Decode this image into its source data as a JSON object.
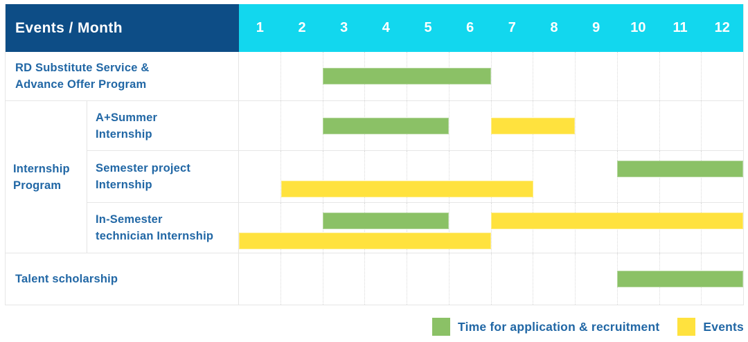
{
  "colors": {
    "header_bg": "#0d4d86",
    "months_bg": "#12d7ee",
    "application": "#8bc166",
    "event": "#ffe23e",
    "label_text": "#2167a5",
    "header_text": "#ffffff"
  },
  "header": {
    "title": "Events / Month",
    "months": [
      "1",
      "2",
      "3",
      "4",
      "5",
      "6",
      "7",
      "8",
      "9",
      "10",
      "11",
      "12"
    ]
  },
  "group": {
    "id": "internship-program",
    "label": "Internship Program",
    "label_lines": [
      "Internship",
      "Program"
    ]
  },
  "rows": [
    {
      "id": "rd-substitute-service",
      "label": "RD Substitute Service & Advance Offer Program",
      "label_lines": [
        "RD Substitute Service &",
        "Advance Offer Program"
      ],
      "group": null,
      "bars": [
        {
          "kind": "application",
          "start": 3,
          "end": 6,
          "lane": "center"
        }
      ]
    },
    {
      "id": "a-plus-summer-internship",
      "label": "A+Summer Internship",
      "label_lines": [
        "A+Summer",
        "Internship"
      ],
      "group": "internship-program",
      "bars": [
        {
          "kind": "application",
          "start": 3,
          "end": 5,
          "lane": "center"
        },
        {
          "kind": "event",
          "start": 7,
          "end": 8,
          "lane": "center"
        }
      ]
    },
    {
      "id": "semester-project-internship",
      "label": "Semester project Internship",
      "label_lines": [
        "Semester project",
        "Internship"
      ],
      "group": "internship-program",
      "bars": [
        {
          "kind": "application",
          "start": 10,
          "end": 12,
          "lane": "top"
        },
        {
          "kind": "event",
          "start": 2,
          "end": 7,
          "lane": "bottom"
        }
      ]
    },
    {
      "id": "in-semester-technician-internship",
      "label": "In-Semester technician Internship",
      "label_lines": [
        "In-Semester",
        "technician Internship"
      ],
      "group": "internship-program",
      "bars": [
        {
          "kind": "application",
          "start": 3,
          "end": 5,
          "lane": "top"
        },
        {
          "kind": "event",
          "start": 7,
          "end": 12,
          "lane": "top"
        },
        {
          "kind": "event",
          "start": 1,
          "end": 6,
          "lane": "bottom"
        }
      ]
    },
    {
      "id": "talent-scholarship",
      "label": "Talent scholarship",
      "label_lines": [
        "Talent scholarship"
      ],
      "group": null,
      "bars": [
        {
          "kind": "application",
          "start": 10,
          "end": 12,
          "lane": "center"
        }
      ]
    }
  ],
  "legend": {
    "items": [
      {
        "kind": "application",
        "label": "Time for application & recruitment"
      },
      {
        "kind": "event",
        "label": "Events"
      }
    ]
  },
  "chart_data": {
    "type": "bar",
    "subtype": "gantt",
    "title": "Events / Month",
    "x": {
      "label": "Month",
      "ticks": [
        1,
        2,
        3,
        4,
        5,
        6,
        7,
        8,
        9,
        10,
        11,
        12
      ],
      "range": [
        1,
        12
      ]
    },
    "grid": true,
    "legend_position": "bottom-right",
    "series": [
      {
        "name": "Time for application & recruitment",
        "color": "#8bc166",
        "bars": [
          {
            "task": "RD Substitute Service & Advance Offer Program",
            "start_month": 3,
            "end_month": 6
          },
          {
            "task": "A+Summer Internship",
            "start_month": 3,
            "end_month": 5
          },
          {
            "task": "Semester project Internship",
            "start_month": 10,
            "end_month": 12
          },
          {
            "task": "In-Semester technician Internship",
            "start_month": 3,
            "end_month": 5
          },
          {
            "task": "Talent scholarship",
            "start_month": 10,
            "end_month": 12
          }
        ]
      },
      {
        "name": "Events",
        "color": "#ffe23e",
        "bars": [
          {
            "task": "A+Summer Internship",
            "start_month": 7,
            "end_month": 8
          },
          {
            "task": "Semester project Internship",
            "start_month": 2,
            "end_month": 7
          },
          {
            "task": "In-Semester technician Internship",
            "start_month": 7,
            "end_month": 12
          },
          {
            "task": "In-Semester technician Internship",
            "start_month": 1,
            "end_month": 6
          }
        ]
      }
    ]
  }
}
